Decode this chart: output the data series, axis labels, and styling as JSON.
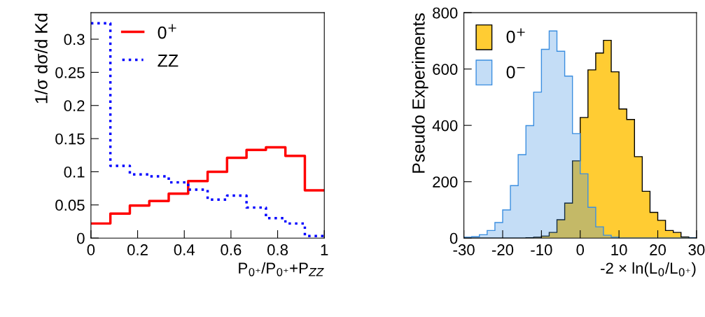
{
  "chart_data": [
    {
      "type": "histogram",
      "ylabel": "1/σ dσ/d Kd",
      "xlabel": "P$_{0⁺}$/P$_{0⁺}$+P$_{ZZ}$",
      "bins": [
        0,
        0.0833,
        0.1667,
        0.25,
        0.3333,
        0.4167,
        0.5,
        0.5833,
        0.6667,
        0.75,
        0.8333,
        0.9167,
        1
      ],
      "series": [
        {
          "name": "0$^{+}$",
          "color": "#ff0000",
          "line_style": "solid",
          "values": [
            0.022,
            0.037,
            0.049,
            0.056,
            0.067,
            0.086,
            0.1,
            0.121,
            0.133,
            0.137,
            0.124,
            0.072
          ]
        },
        {
          "name": "ZZ",
          "color": "#0000ff",
          "line_style": "dotted",
          "values": [
            0.324,
            0.109,
            0.096,
            0.093,
            0.084,
            0.073,
            0.058,
            0.064,
            0.046,
            0.03,
            0.022,
            0.003
          ]
        }
      ],
      "xlim": [
        0,
        1
      ],
      "ylim": [
        0,
        0.34
      ],
      "xticks": [
        0,
        0.2,
        0.4,
        0.6,
        0.8,
        1
      ],
      "yticks": [
        0,
        0.05,
        0.1,
        0.15,
        0.2,
        0.25,
        0.3
      ],
      "legend": "top",
      "grid": false
    },
    {
      "type": "histogram",
      "ylabel": "Pseudo Experiments",
      "xlabel": "-2 × ln(L$_{0}$/L$_{0⁺}$)",
      "bins": [
        -30,
        -28,
        -26,
        -24,
        -22,
        -20,
        -18,
        -16,
        -14,
        -12,
        -10,
        -8,
        -6,
        -4,
        -2,
        0,
        2,
        4,
        6,
        8,
        10,
        12,
        14,
        16,
        18,
        20,
        22,
        24,
        26,
        28,
        30
      ],
      "series": [
        {
          "name": "0$^{+}$",
          "color": "#ffcc33",
          "values": [
            0,
            0,
            0,
            0,
            0,
            0,
            0,
            0,
            1,
            3,
            7,
            20,
            65,
            124,
            274,
            428,
            597,
            657,
            702,
            590,
            458,
            421,
            289,
            166,
            91,
            63,
            27,
            20,
            4,
            1
          ]
        },
        {
          "name": "0$^{−}$",
          "color": "#3b8ee0",
          "values": [
            3,
            5,
            12,
            27,
            55,
            100,
            186,
            296,
            399,
            518,
            670,
            735,
            663,
            575,
            371,
            228,
            109,
            40,
            10,
            3,
            0,
            0,
            0,
            0,
            0,
            0,
            0,
            0,
            0,
            0
          ]
        }
      ],
      "xlim": [
        -30,
        30
      ],
      "ylim": [
        0,
        800
      ],
      "xticks": [
        -30,
        -20,
        -10,
        0,
        10,
        20,
        30
      ],
      "yticks": [
        0,
        200,
        400,
        600,
        800
      ],
      "legend": "top left",
      "grid": false
    }
  ]
}
